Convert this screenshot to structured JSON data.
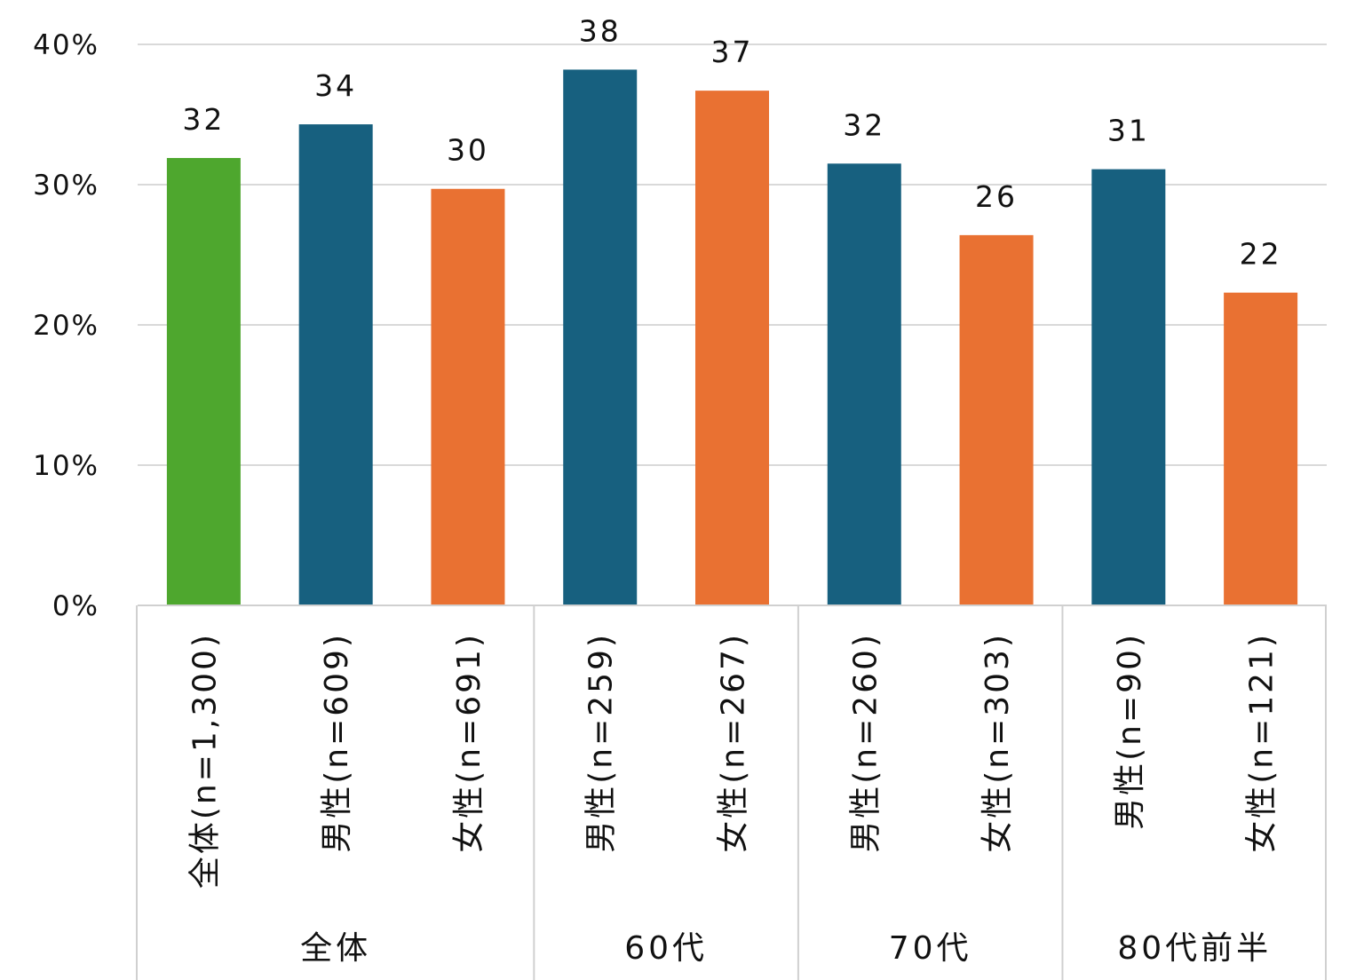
{
  "chart_data": {
    "type": "bar",
    "yaxis": {
      "min": 0,
      "max": 40,
      "step": 10,
      "tick_labels": [
        "0%",
        "10%",
        "20%",
        "30%",
        "40%"
      ]
    },
    "grid": true,
    "categories": [
      "全体(n=1,300)",
      "男性(n=609)",
      "女性(n=691)",
      "男性(n=259)",
      "女性(n=267)",
      "男性(n=260)",
      "女性(n=303)",
      "男性(n=90)",
      "女性(n=121)"
    ],
    "values": [
      32,
      34,
      30,
      38,
      37,
      32,
      26,
      31,
      22
    ],
    "bar_values": [
      31.9,
      34.3,
      29.7,
      38.2,
      36.7,
      31.5,
      26.4,
      31.1,
      22.3
    ],
    "groups": [
      {
        "label": "全体",
        "count": 3
      },
      {
        "label": "60代",
        "count": 2
      },
      {
        "label": "70代",
        "count": 2
      },
      {
        "label": "80代前半",
        "count": 2
      }
    ],
    "colors": {
      "total": "#4EA72E",
      "male": "#17607F",
      "female": "#E97132",
      "grid": "#D9D9D9",
      "axis": "#D0D0D0"
    },
    "bar_color_keys": [
      "total",
      "male",
      "female",
      "male",
      "female",
      "male",
      "female",
      "male",
      "female"
    ]
  }
}
